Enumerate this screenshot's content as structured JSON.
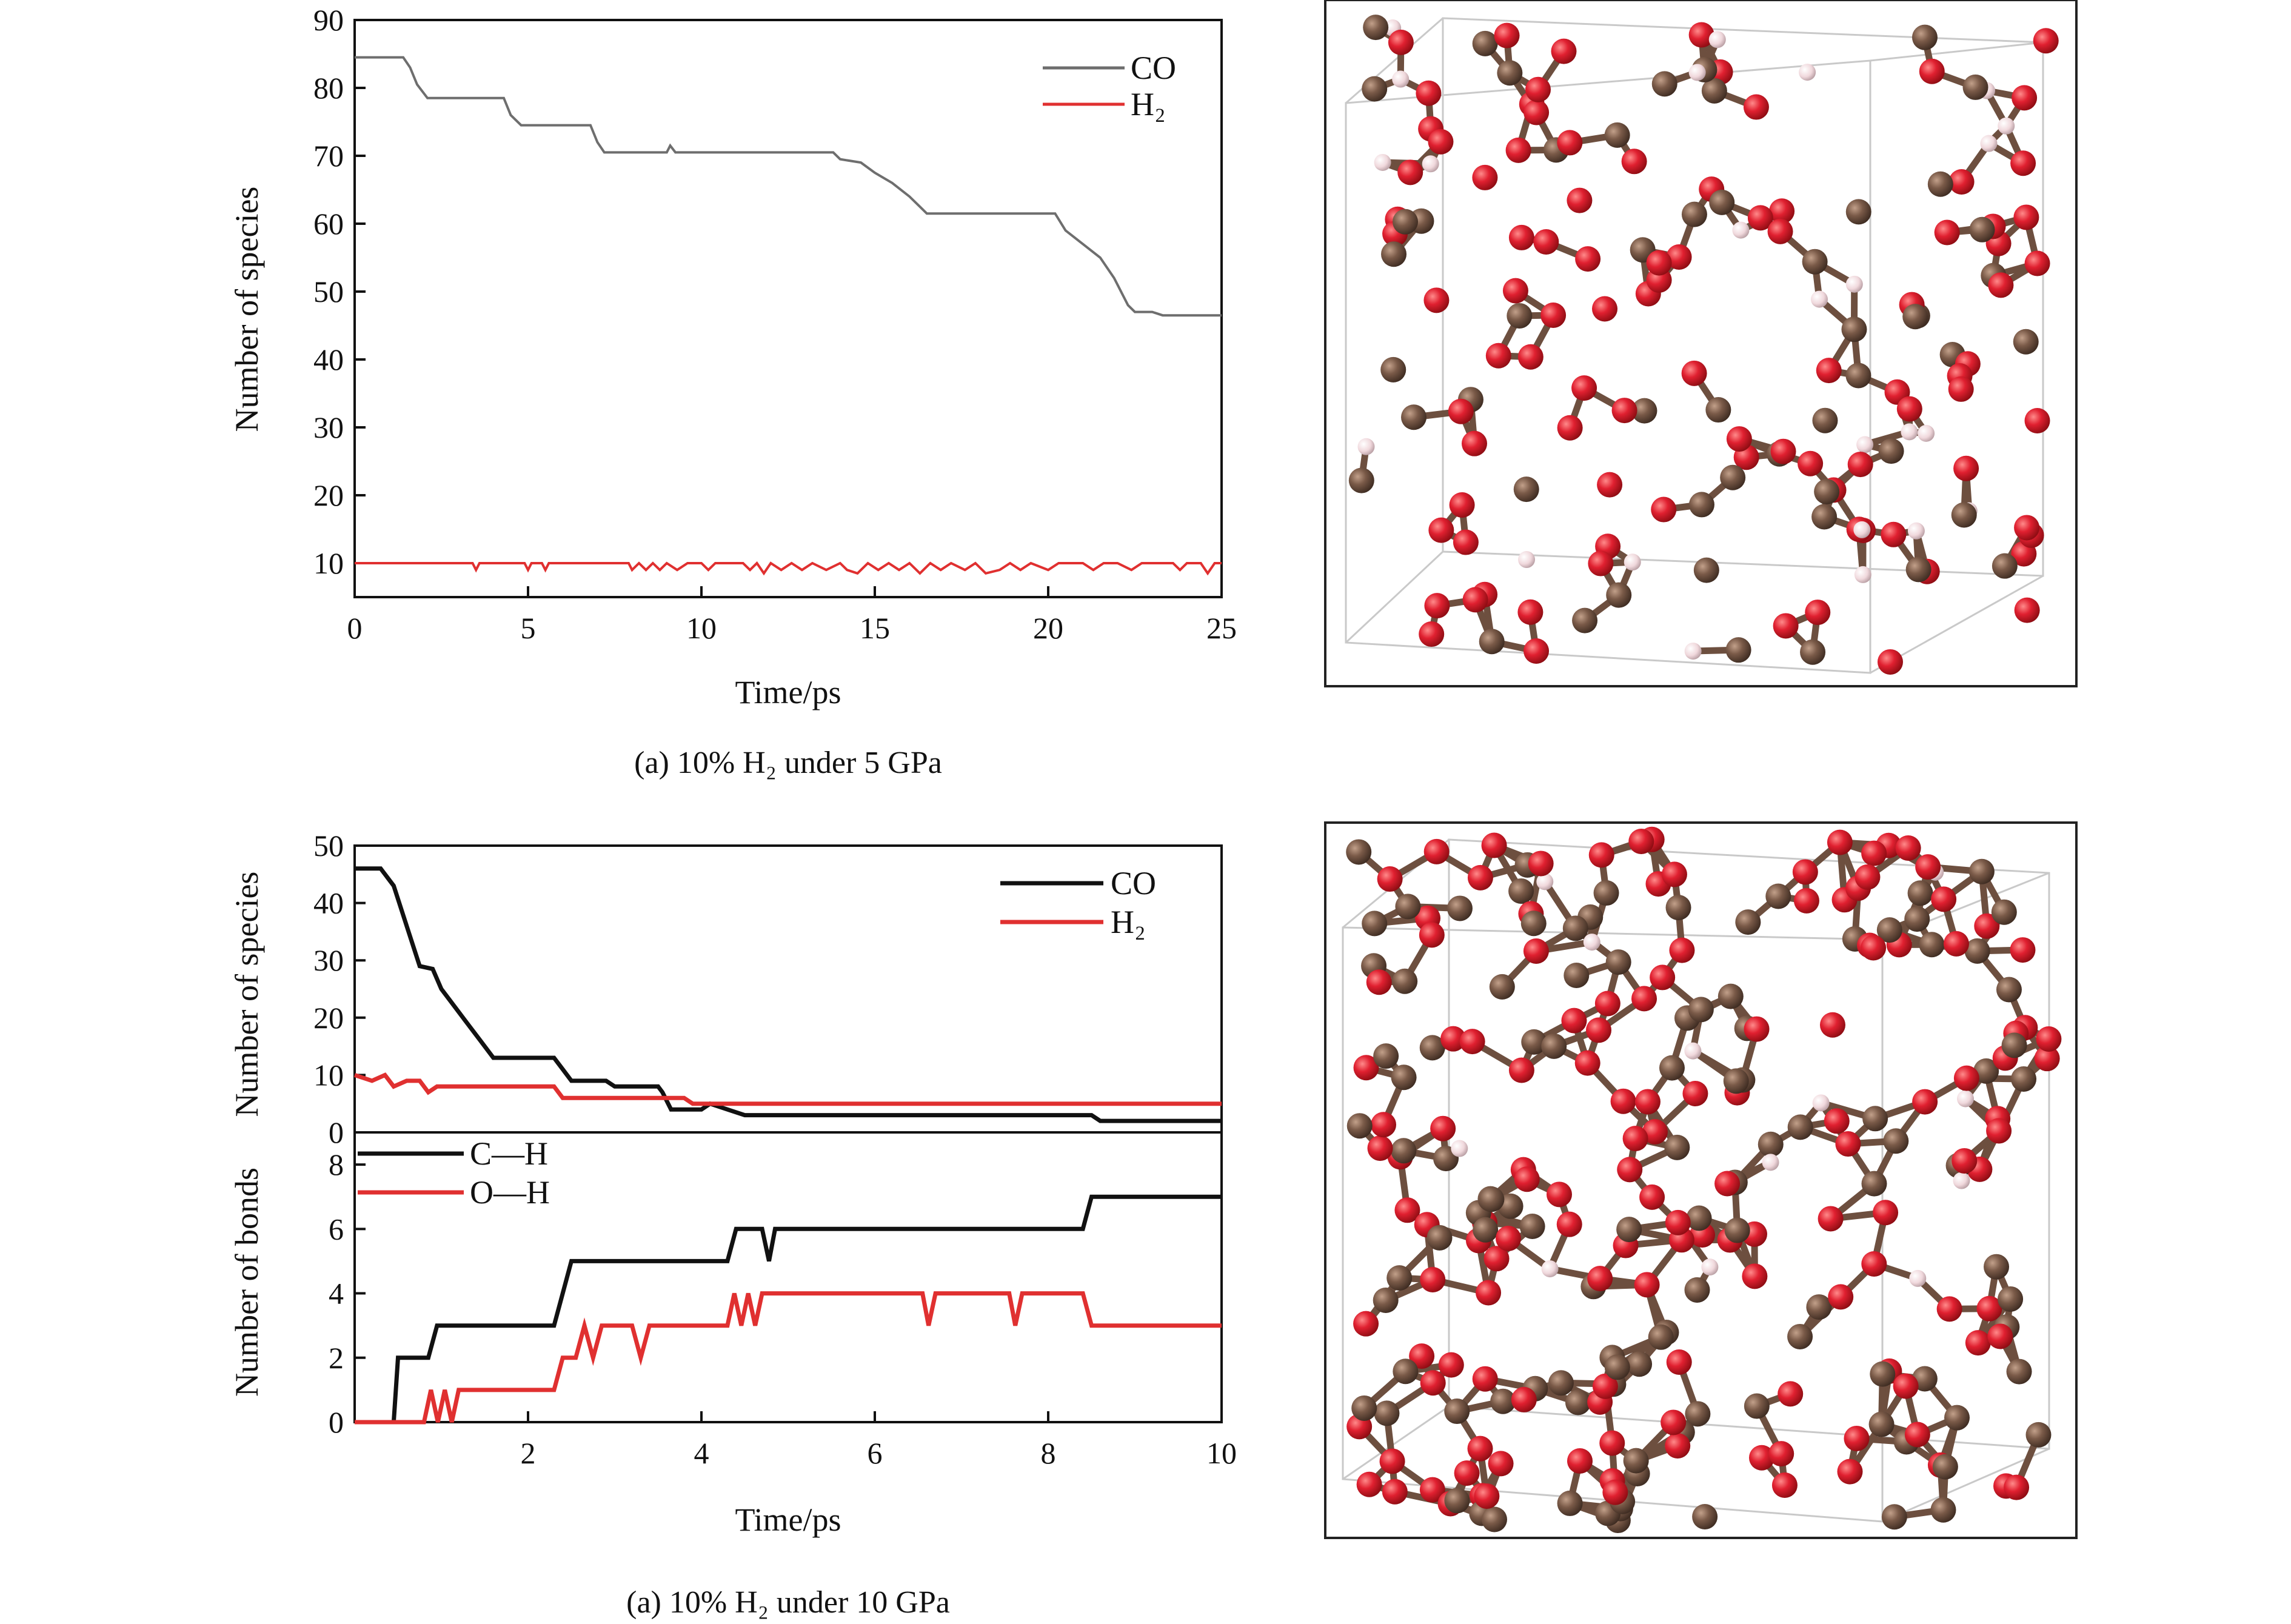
{
  "chart_data": [
    {
      "type": "line",
      "panel": "top-left",
      "title": "",
      "caption": "(a) 10% H₂ under 5 GPa",
      "xlabel": "Time/ps",
      "ylabel": "Number of species",
      "xlim": [
        0,
        25
      ],
      "ylim": [
        5,
        90
      ],
      "xticks": [
        0,
        5,
        10,
        15,
        20,
        25
      ],
      "yticks": [
        10,
        20,
        30,
        40,
        50,
        60,
        70,
        80,
        90
      ],
      "legend_position": "top-right",
      "series": [
        {
          "name": "CO",
          "color": "#6e6e6e",
          "points": [
            [
              0,
              84.5
            ],
            [
              1.4,
              84.5
            ],
            [
              1.6,
              83
            ],
            [
              1.8,
              80.5
            ],
            [
              2.1,
              78.5
            ],
            [
              4.3,
              78.5
            ],
            [
              4.5,
              76
            ],
            [
              4.8,
              74.5
            ],
            [
              6.8,
              74.5
            ],
            [
              7.0,
              72
            ],
            [
              7.2,
              70.5
            ],
            [
              9.0,
              70.5
            ],
            [
              9.1,
              71.5
            ],
            [
              9.25,
              70.5
            ],
            [
              13.8,
              70.5
            ],
            [
              14.0,
              69.5
            ],
            [
              14.6,
              69
            ],
            [
              15.0,
              67.5
            ],
            [
              15.5,
              66
            ],
            [
              16.0,
              64
            ],
            [
              16.5,
              61.5
            ],
            [
              20.2,
              61.5
            ],
            [
              20.5,
              59
            ],
            [
              21.0,
              57
            ],
            [
              21.5,
              55
            ],
            [
              21.9,
              52
            ],
            [
              22.3,
              48
            ],
            [
              22.5,
              47
            ],
            [
              23.0,
              47
            ],
            [
              23.3,
              46.5
            ],
            [
              25.0,
              46.5
            ]
          ]
        },
        {
          "name": "H₂",
          "color": "#e03030",
          "points": [
            [
              0,
              10
            ],
            [
              3.4,
              10
            ],
            [
              3.5,
              9
            ],
            [
              3.6,
              10
            ],
            [
              4.9,
              10
            ],
            [
              5.0,
              9
            ],
            [
              5.1,
              10
            ],
            [
              5.4,
              10
            ],
            [
              5.5,
              9
            ],
            [
              5.6,
              10
            ],
            [
              7.9,
              10
            ],
            [
              8.0,
              9
            ],
            [
              8.2,
              10
            ],
            [
              8.4,
              9
            ],
            [
              8.6,
              10
            ],
            [
              8.8,
              9
            ],
            [
              9.0,
              10
            ],
            [
              9.3,
              9
            ],
            [
              9.6,
              10
            ],
            [
              10.0,
              10
            ],
            [
              10.2,
              9
            ],
            [
              10.4,
              10
            ],
            [
              11.2,
              10
            ],
            [
              11.4,
              9
            ],
            [
              11.6,
              10
            ],
            [
              11.8,
              8.5
            ],
            [
              12.0,
              10
            ],
            [
              12.3,
              9
            ],
            [
              12.6,
              10
            ],
            [
              12.9,
              9
            ],
            [
              13.2,
              10
            ],
            [
              13.6,
              9
            ],
            [
              14.0,
              10
            ],
            [
              14.2,
              9
            ],
            [
              14.5,
              8.5
            ],
            [
              14.8,
              10
            ],
            [
              15.1,
              9
            ],
            [
              15.4,
              10
            ],
            [
              15.7,
              9
            ],
            [
              16.0,
              10
            ],
            [
              16.3,
              8.5
            ],
            [
              16.6,
              10
            ],
            [
              16.9,
              9
            ],
            [
              17.2,
              10
            ],
            [
              17.6,
              9
            ],
            [
              17.9,
              10
            ],
            [
              18.2,
              8.5
            ],
            [
              18.6,
              9
            ],
            [
              18.9,
              10
            ],
            [
              19.2,
              9
            ],
            [
              19.5,
              10
            ],
            [
              20.0,
              9
            ],
            [
              20.3,
              10
            ],
            [
              21.0,
              10
            ],
            [
              21.3,
              9
            ],
            [
              21.6,
              10
            ],
            [
              22.0,
              10
            ],
            [
              22.4,
              9
            ],
            [
              22.7,
              10
            ],
            [
              23.6,
              10
            ],
            [
              23.8,
              9
            ],
            [
              24.0,
              10
            ],
            [
              24.4,
              10
            ],
            [
              24.6,
              8.5
            ],
            [
              24.8,
              10
            ],
            [
              25.0,
              10
            ]
          ]
        }
      ]
    },
    {
      "type": "line",
      "panel": "bottom-left-upper",
      "title": "",
      "xlabel": "",
      "ylabel": "Number of species",
      "xlim": [
        0,
        10
      ],
      "ylim": [
        0,
        50
      ],
      "yticks": [
        0,
        10,
        20,
        30,
        40,
        50
      ],
      "legend_position": "top-right",
      "series": [
        {
          "name": "CO",
          "color": "#111111",
          "points": [
            [
              0,
              46
            ],
            [
              0.3,
              46
            ],
            [
              0.45,
              43
            ],
            [
              0.6,
              36
            ],
            [
              0.75,
              29
            ],
            [
              0.9,
              28.5
            ],
            [
              1.0,
              25
            ],
            [
              1.1,
              23
            ],
            [
              1.3,
              19
            ],
            [
              1.45,
              16
            ],
            [
              1.6,
              13
            ],
            [
              2.3,
              13
            ],
            [
              2.4,
              11
            ],
            [
              2.5,
              9
            ],
            [
              2.9,
              9
            ],
            [
              3.0,
              8
            ],
            [
              3.5,
              8
            ],
            [
              3.55,
              7
            ],
            [
              3.65,
              4
            ],
            [
              4.0,
              4
            ],
            [
              4.1,
              5
            ],
            [
              4.3,
              4
            ],
            [
              4.5,
              3
            ],
            [
              8.5,
              3
            ],
            [
              8.6,
              2
            ],
            [
              10,
              2
            ]
          ]
        },
        {
          "name": "H₂",
          "color": "#e03030",
          "points": [
            [
              0,
              10
            ],
            [
              0.2,
              9
            ],
            [
              0.35,
              10
            ],
            [
              0.45,
              8
            ],
            [
              0.6,
              9
            ],
            [
              0.75,
              9
            ],
            [
              0.85,
              7
            ],
            [
              0.95,
              8
            ],
            [
              2.3,
              8
            ],
            [
              2.4,
              6
            ],
            [
              3.8,
              6
            ],
            [
              3.9,
              5
            ],
            [
              10,
              5
            ]
          ]
        }
      ]
    },
    {
      "type": "line",
      "panel": "bottom-left-lower",
      "title": "",
      "caption": "(a) 10% H₂ under 10 GPa",
      "xlabel": "Time/ps",
      "ylabel": "Number of bonds",
      "xlim": [
        0,
        10
      ],
      "ylim": [
        0,
        9
      ],
      "xticks": [
        2,
        4,
        6,
        8,
        10
      ],
      "yticks": [
        0,
        2,
        4,
        6,
        8
      ],
      "legend_position": "top-left",
      "series": [
        {
          "name": "C—H",
          "color": "#111111",
          "points": [
            [
              0,
              0
            ],
            [
              0.45,
              0
            ],
            [
              0.5,
              2
            ],
            [
              0.85,
              2
            ],
            [
              0.95,
              3
            ],
            [
              2.3,
              3
            ],
            [
              2.5,
              5
            ],
            [
              4.3,
              5
            ],
            [
              4.4,
              6
            ],
            [
              4.7,
              6
            ],
            [
              4.78,
              5
            ],
            [
              4.85,
              6
            ],
            [
              8.4,
              6
            ],
            [
              8.5,
              7
            ],
            [
              10,
              7
            ]
          ]
        },
        {
          "name": "O—H",
          "color": "#e03030",
          "points": [
            [
              0,
              0
            ],
            [
              0.8,
              0
            ],
            [
              0.88,
              1
            ],
            [
              0.96,
              0
            ],
            [
              1.04,
              1
            ],
            [
              1.12,
              0
            ],
            [
              1.2,
              1
            ],
            [
              2.3,
              1
            ],
            [
              2.4,
              2
            ],
            [
              2.55,
              2
            ],
            [
              2.65,
              3
            ],
            [
              2.75,
              2
            ],
            [
              2.85,
              3
            ],
            [
              3.2,
              3
            ],
            [
              3.3,
              2
            ],
            [
              3.4,
              3
            ],
            [
              4.3,
              3
            ],
            [
              4.38,
              4
            ],
            [
              4.46,
              3
            ],
            [
              4.54,
              4
            ],
            [
              4.62,
              3
            ],
            [
              4.7,
              4
            ],
            [
              6.55,
              4
            ],
            [
              6.62,
              3
            ],
            [
              6.7,
              4
            ],
            [
              7.55,
              4
            ],
            [
              7.62,
              3
            ],
            [
              7.7,
              4
            ],
            [
              8.4,
              4
            ],
            [
              8.5,
              3
            ],
            [
              10,
              3
            ]
          ]
        }
      ]
    }
  ],
  "figure": {
    "top_caption": "(a) 10% H₂ under 5 GPa",
    "bottom_caption": "(a) 10% H₂ under 10 GPa",
    "atom_colors": {
      "carbon": "#7a5a48",
      "oxygen": "#d81e2a",
      "hydrogen": "#e9cfd3",
      "bond": "#6d4f3f"
    }
  }
}
